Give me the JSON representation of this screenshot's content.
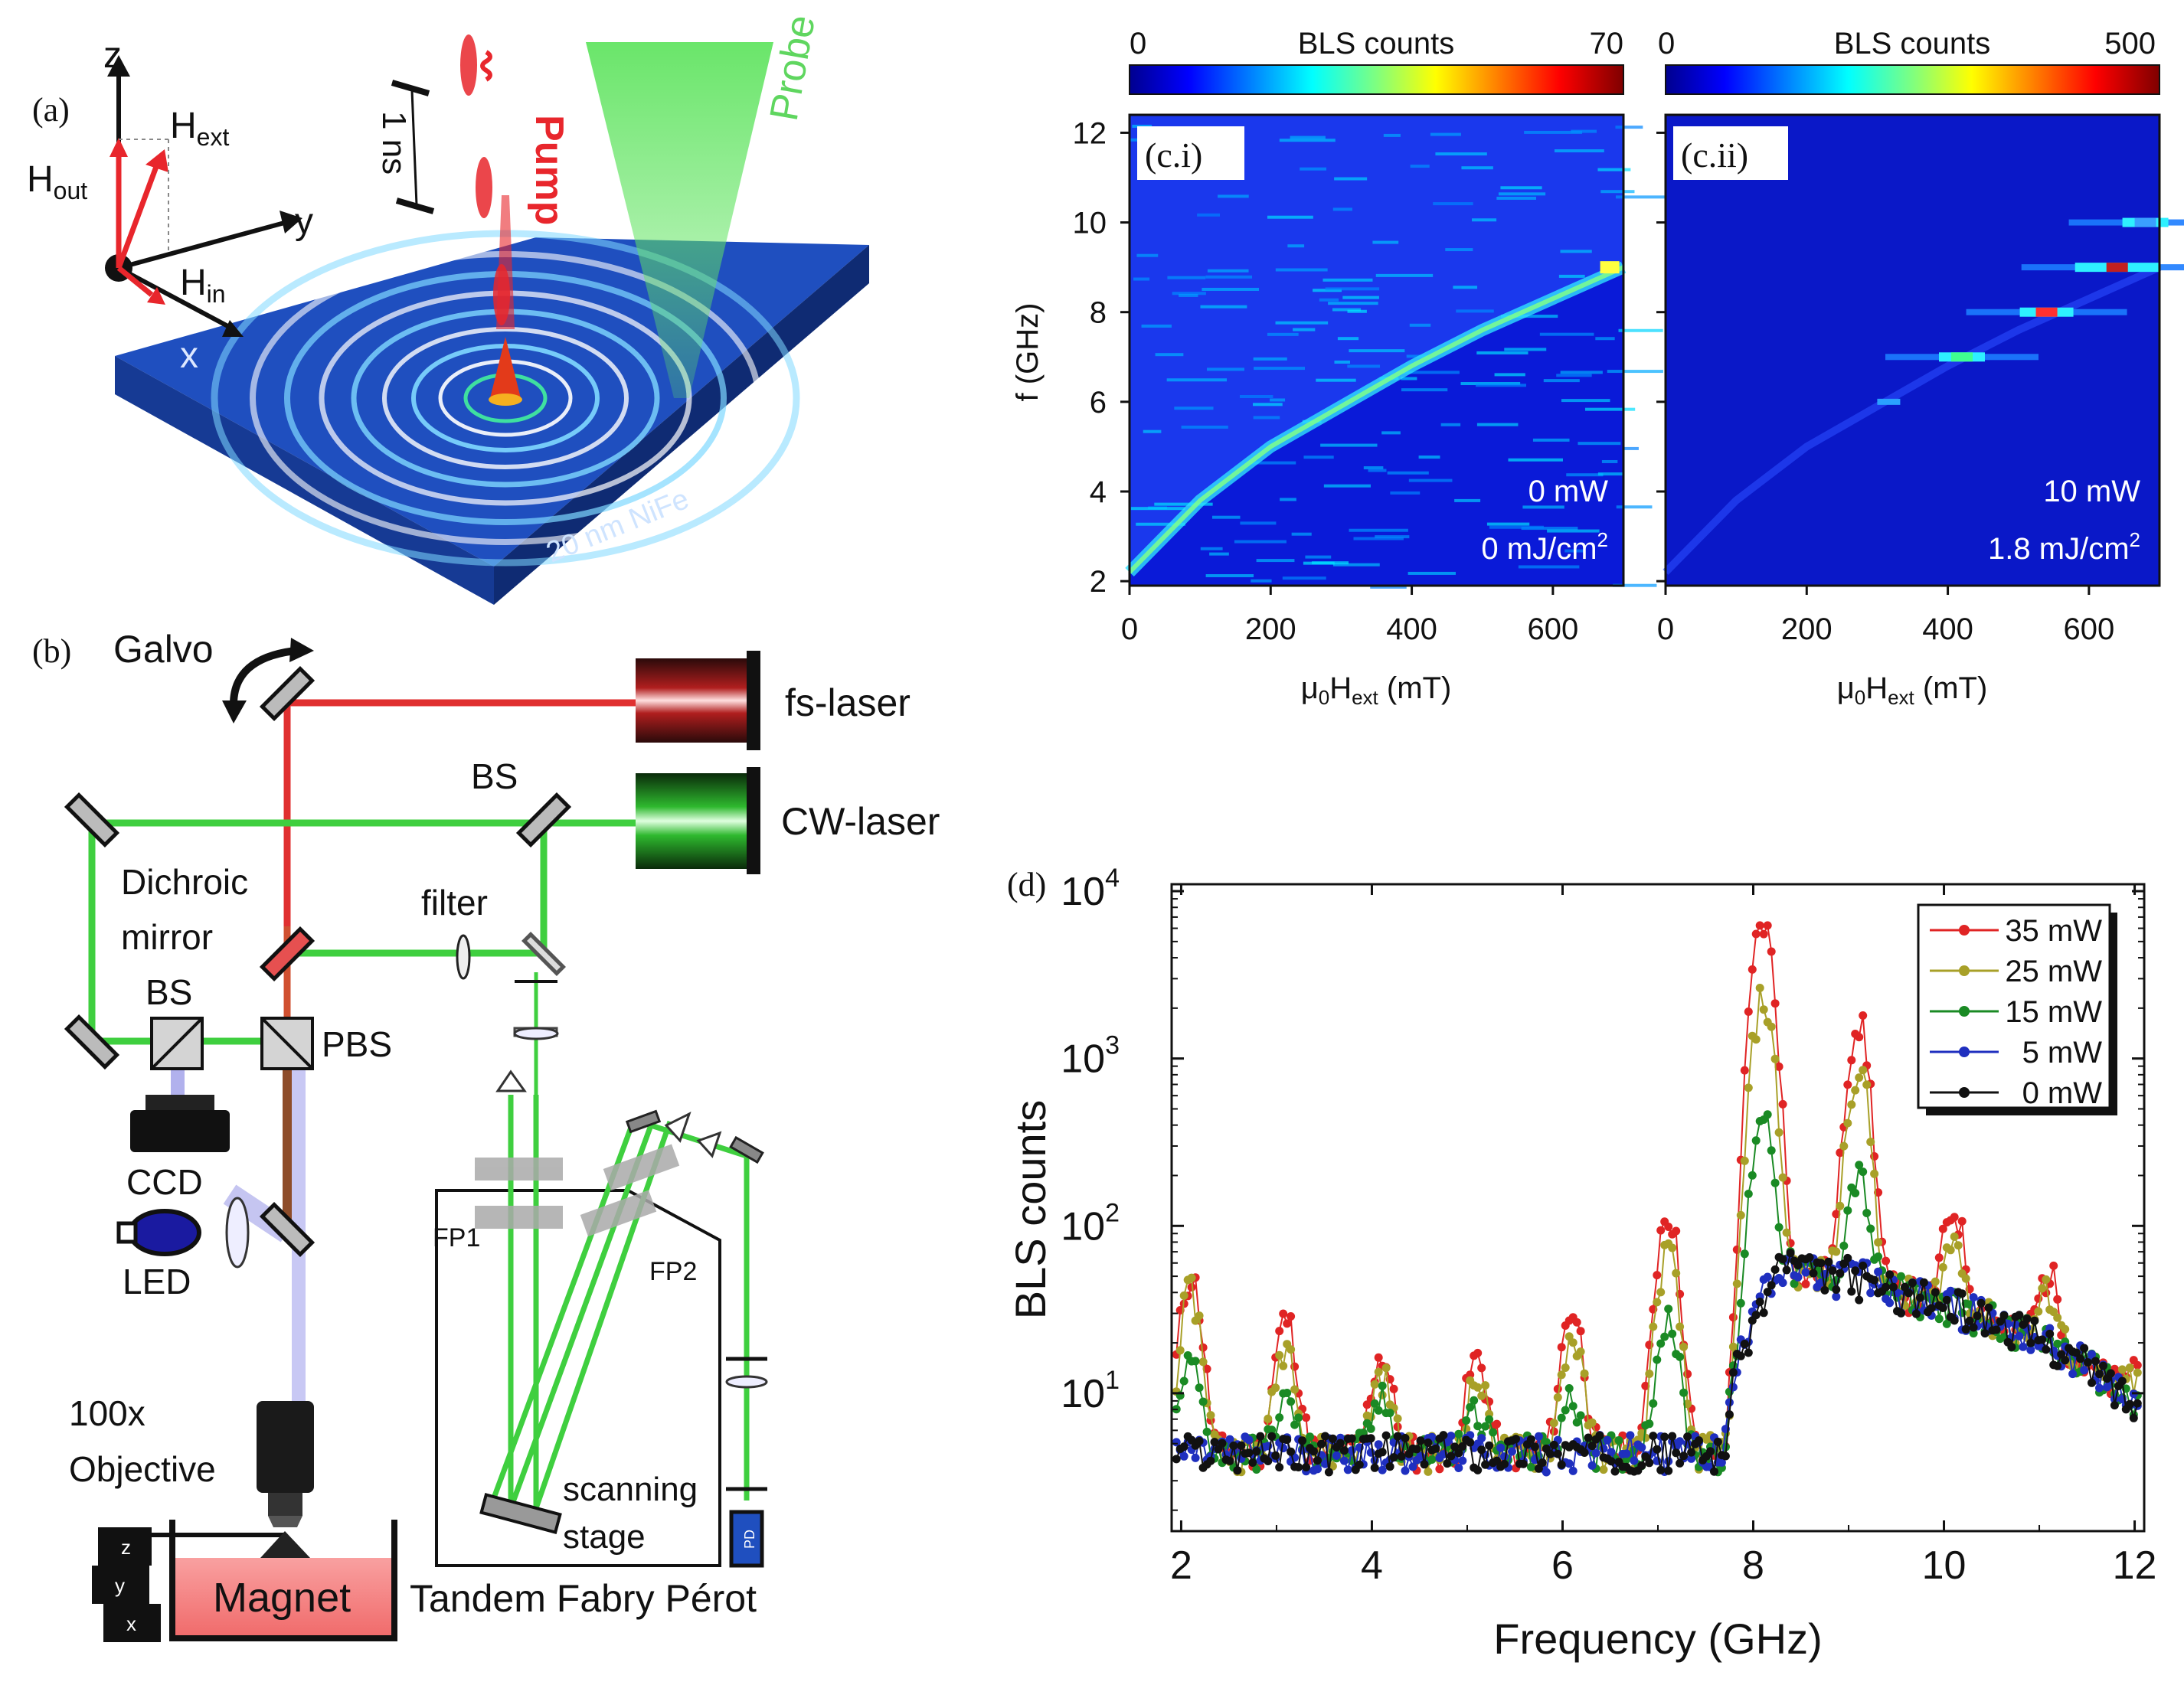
{
  "panel_labels": {
    "a": "(a)",
    "b": "(b)",
    "ci": "(c.i)",
    "cii": "(c.ii)",
    "d": "(d)"
  },
  "panel_a": {
    "axis_z": "z",
    "axis_y": "y",
    "axis_x": "x",
    "h_ext_main": "H",
    "h_ext_sub": "ext",
    "h_out_main": "H",
    "h_out_sub": "out",
    "h_in_main": "H",
    "h_in_sub": "in",
    "pump": "Pump",
    "probe": "Probe",
    "pulse_delay": "1 ns",
    "sample": "20 nm NiFe",
    "colors": {
      "pump": "#e8262c",
      "probe": "#5fd65f",
      "film": "#1f4fbf",
      "field": "#e8262c"
    }
  },
  "panel_b": {
    "galvo": "Galvo",
    "fs_laser": "fs-laser",
    "cw_laser": "CW-laser",
    "bs_top": "BS",
    "dichroic_1": "Dichroic",
    "dichroic_2": "mirror",
    "filter": "filter",
    "bs_left": "BS",
    "pbs": "PBS",
    "ccd": "CCD",
    "led": "LED",
    "objective_1": "100x",
    "objective_2": "Objective",
    "magnet": "Magnet",
    "fp1": "FP1",
    "fp2": "FP2",
    "scanning_1": "scanning",
    "scanning_2": "stage",
    "tandem": "Tandem Fabry Pérot",
    "stage_z": "z",
    "stage_y": "y",
    "stage_x": "x",
    "pd": "PD",
    "colors": {
      "red_beam": "#e03030",
      "green_beam": "#3fcf3f",
      "magnet": "#f27b7b",
      "led_beam": "#9e9ee8",
      "brown_beam": "#8e4d2a"
    }
  },
  "panel_c": {
    "ylabel": "f (GHz)",
    "xlabel_main": "μ",
    "xlabel_0": "0",
    "xlabel_h": "H",
    "xlabel_sub": "ext",
    "xlabel_unit": " (mT)",
    "yticks": [
      "2",
      "4",
      "6",
      "8",
      "10",
      "12"
    ],
    "xticks": [
      "0",
      "200",
      "400",
      "600"
    ],
    "cbar_title": "BLS counts",
    "left": {
      "cbar_min": "0",
      "cbar_max": "70",
      "power": "0 mW",
      "fluence_main": "0 mJ/cm",
      "fluence_sup": "2"
    },
    "right": {
      "cbar_min": "0",
      "cbar_max": "500",
      "power": "10 mW",
      "fluence_main": "1.8 mJ/cm",
      "fluence_sup": "2"
    }
  },
  "chart_data": [
    {
      "type": "heatmap",
      "title": "(c.i)",
      "xlabel": "μ0Hext (mT)",
      "ylabel": "f (GHz)",
      "xlim": [
        0,
        700
      ],
      "ylim": [
        1.9,
        12.4
      ],
      "colorbar": {
        "label": "BLS counts",
        "min": 0,
        "max": 70
      },
      "annotations": [
        "0 mW",
        "0 mJ/cm2"
      ],
      "features": [
        {
          "name": "spin-wave dispersion onset",
          "points": [
            [
              0,
              2.2
            ],
            [
              100,
              3.8
            ],
            [
              200,
              5.0
            ],
            [
              300,
              5.9
            ],
            [
              400,
              6.8
            ],
            [
              500,
              7.6
            ],
            [
              600,
              8.3
            ],
            [
              700,
              9.0
            ]
          ]
        }
      ]
    },
    {
      "type": "heatmap",
      "title": "(c.ii)",
      "xlabel": "μ0Hext (mT)",
      "ylabel": "f (GHz)",
      "xlim": [
        0,
        700
      ],
      "ylim": [
        1.9,
        12.4
      ],
      "colorbar": {
        "label": "BLS counts",
        "min": 0,
        "max": 500
      },
      "annotations": [
        "10 mW",
        "1.8 mJ/cm2"
      ],
      "features": [
        {
          "name": "harmonic lines",
          "points": [
            [
              420,
              7.0
            ],
            [
              540,
              8.0
            ],
            [
              640,
              9.0
            ],
            [
              680,
              10.0
            ]
          ]
        }
      ]
    },
    {
      "type": "line",
      "title": "(d)",
      "xlabel": "Frequency (GHz)",
      "ylabel": "BLS counts",
      "yscale": "log",
      "xlim": [
        1.9,
        12.1
      ],
      "ylim": [
        1.5,
        11000
      ],
      "xticks": [
        "2",
        "4",
        "6",
        "8",
        "10",
        "12"
      ],
      "yticks": [
        {
          "base": "10",
          "exp": "1"
        },
        {
          "base": "10",
          "exp": "2"
        },
        {
          "base": "10",
          "exp": "3"
        },
        {
          "base": "10",
          "exp": "4"
        }
      ],
      "series": [
        {
          "name": "35 mW",
          "color": "#e02424",
          "peaks": [
            [
              2.1,
              50
            ],
            [
              3.1,
              28
            ],
            [
              4.1,
              17
            ],
            [
              5.1,
              16
            ],
            [
              6.1,
              32
            ],
            [
              7.1,
              125
            ],
            [
              8.1,
              6500
            ],
            [
              9.1,
              1700
            ],
            [
              10.1,
              125
            ],
            [
              11.1,
              52
            ],
            [
              12.0,
              15
            ]
          ]
        },
        {
          "name": "25 mW",
          "color": "#a8a028",
          "peaks": [
            [
              2.1,
              40
            ],
            [
              3.1,
              20
            ],
            [
              4.1,
              13
            ],
            [
              5.1,
              12
            ],
            [
              6.1,
              22
            ],
            [
              7.1,
              70
            ],
            [
              8.1,
              2300
            ],
            [
              9.1,
              900
            ],
            [
              10.1,
              80
            ],
            [
              11.1,
              40
            ],
            [
              12.0,
              12
            ]
          ]
        },
        {
          "name": "15 mW",
          "color": "#1a8a24",
          "peaks": [
            [
              2.1,
              15
            ],
            [
              3.1,
              9
            ],
            [
              4.1,
              9
            ],
            [
              5.1,
              8
            ],
            [
              6.1,
              9
            ],
            [
              7.1,
              30
            ],
            [
              8.1,
              480
            ],
            [
              9.1,
              200
            ],
            [
              10.1,
              25
            ]
          ]
        },
        {
          "name": "5 mW",
          "color": "#1f2fbf",
          "peaks": [
            [
              8.1,
              50
            ],
            [
              9.1,
              55
            ]
          ]
        },
        {
          "name": "0 mW",
          "color": "#111111",
          "peaks": [
            [
              8.3,
              60
            ],
            [
              9.0,
              52
            ]
          ]
        }
      ]
    }
  ]
}
